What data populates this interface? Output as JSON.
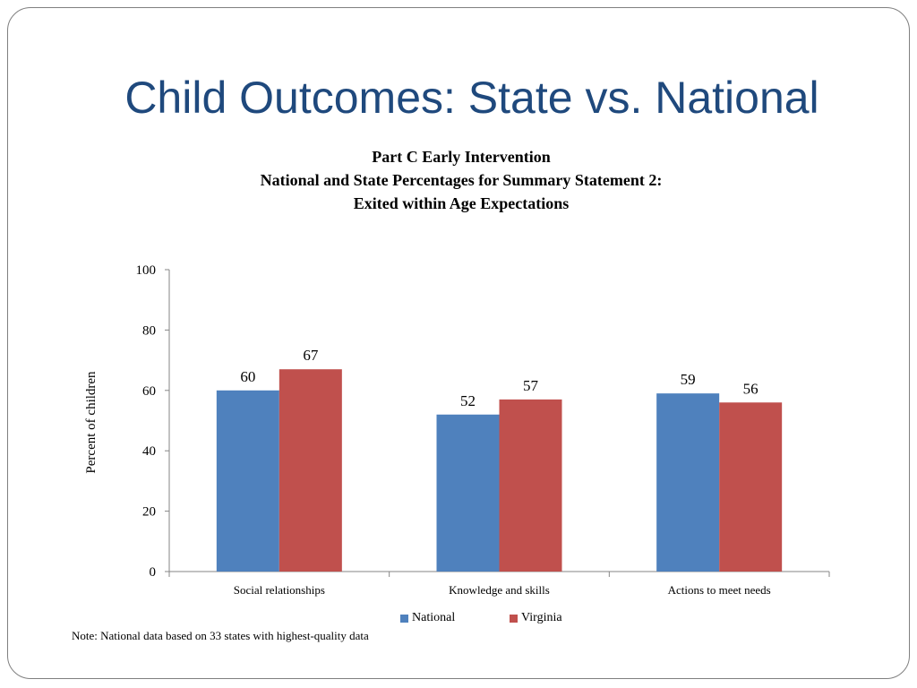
{
  "slide": {
    "title": "Child Outcomes: State vs. National",
    "note": "Note: National data based on 33 states with highest-quality data"
  },
  "chart_data": {
    "type": "bar",
    "title_lines": [
      "Part C Early Intervention",
      "National and State Percentages for Summary Statement 2:",
      "Exited within Age Expectations"
    ],
    "categories": [
      "Social relationships",
      "Knowledge and skills",
      "Actions to meet needs"
    ],
    "series": [
      {
        "name": "National",
        "values": [
          60,
          52,
          59
        ],
        "color": "#4f81bd"
      },
      {
        "name": "Virginia",
        "values": [
          67,
          57,
          56
        ],
        "color": "#c0504d"
      }
    ],
    "ylabel": "Percent of children",
    "xlabel": "",
    "ylim": [
      0,
      100
    ],
    "yticks": [
      0,
      20,
      40,
      60,
      80,
      100
    ],
    "legend_position": "bottom",
    "grid": false
  }
}
